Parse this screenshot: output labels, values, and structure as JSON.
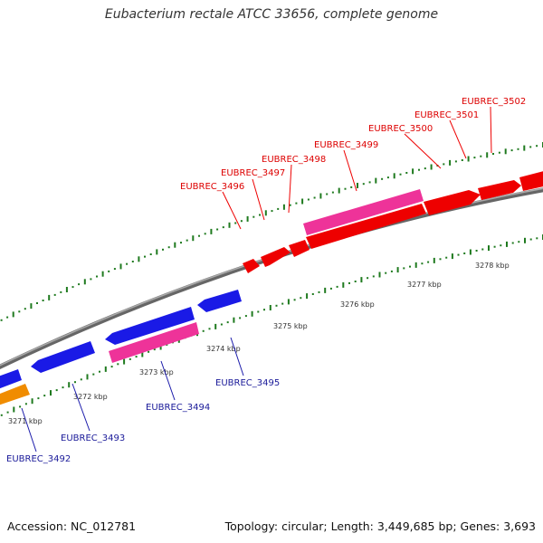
{
  "title": "Eubacterium rectale ATCC 33656, complete genome",
  "footer": {
    "accession": "Accession: NC_012781",
    "summary": "Topology: circular; Length: 3,449,685 bp; Genes: 3,693"
  },
  "colors": {
    "backbone": "#888888",
    "tick": "#1f7a1f",
    "forward_cds": "#ee0000",
    "forward_other": "#ee3399",
    "reverse_cds": "#1a1ae6",
    "reverse_other": "#ee3399",
    "reverse_partial": "#f08c00",
    "forward_label": "#dd0000",
    "reverse_label": "#1a1a99",
    "scale_label": "#333333"
  },
  "scale_labels": [
    "3271 kbp",
    "3272 kbp",
    "3273 kbp",
    "3274 kbp",
    "3275 kbp",
    "3276 kbp",
    "3277 kbp",
    "3278 kbp"
  ],
  "forward_labels": [
    "EUBREC_3496",
    "EUBREC_3497",
    "EUBREC_3498",
    "EUBREC_3499",
    "EUBREC_3500",
    "EUBREC_3501",
    "EUBREC_3502"
  ],
  "reverse_labels": [
    "EUBREC_3492",
    "EUBREC_3493",
    "EUBREC_3494",
    "EUBREC_3495"
  ]
}
